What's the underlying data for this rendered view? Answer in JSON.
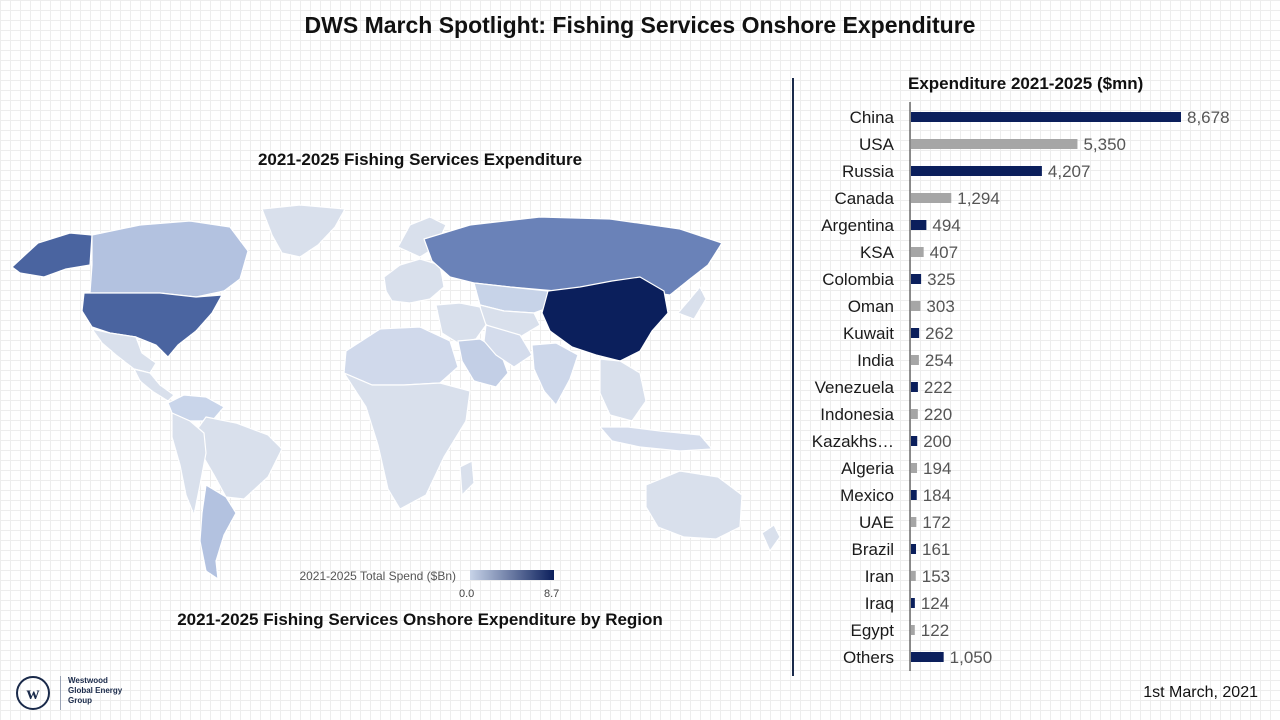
{
  "header": {
    "title": "DWS March Spotlight: Fishing Services Onshore Expenditure"
  },
  "map": {
    "title": "2021-2025 Fishing Services Expenditure",
    "caption": "2021-2025 Fishing Services Onshore Expenditure by Region",
    "legend": {
      "label": "2021-2025 Total Spend ($Bn)",
      "min": "0.0",
      "max": "8.7"
    },
    "colors": {
      "low": "#c7d3e8",
      "high": "#0b1f5c",
      "no_data": "#d9e0ec",
      "border": "#ffffff"
    }
  },
  "chart_data": {
    "type": "bar",
    "orientation": "horizontal",
    "title": "Expenditure 2021-2025 ($mn)",
    "categories": [
      "China",
      "USA",
      "Russia",
      "Canada",
      "Argentina",
      "KSA",
      "Colombia",
      "Oman",
      "Kuwait",
      "India",
      "Venezuela",
      "Indonesia",
      "Kazakhs…",
      "Algeria",
      "Mexico",
      "UAE",
      "Brazil",
      "Iran",
      "Iraq",
      "Egypt",
      "Others"
    ],
    "values": [
      8678,
      5350,
      4207,
      1294,
      494,
      407,
      325,
      303,
      262,
      254,
      222,
      220,
      200,
      194,
      184,
      172,
      161,
      153,
      124,
      122,
      1050
    ],
    "value_labels": [
      "8,678",
      "5,350",
      "4,207",
      "1,294",
      "494",
      "407",
      "325",
      "303",
      "262",
      "254",
      "222",
      "220",
      "200",
      "194",
      "184",
      "172",
      "161",
      "153",
      "124",
      "122",
      "1,050"
    ],
    "colors": [
      "#0b1f5c",
      "#a6a6a6"
    ],
    "xlim": [
      0,
      8678
    ]
  },
  "footer": {
    "date": "1st March, 2021",
    "logo": {
      "mark": "w",
      "lines": [
        "Westwood",
        "Global Energy",
        "Group"
      ]
    }
  }
}
